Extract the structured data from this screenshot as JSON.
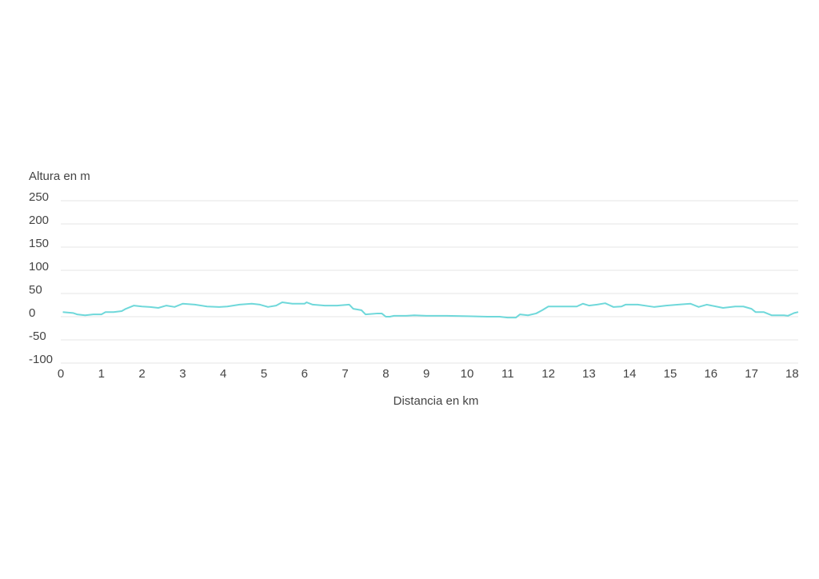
{
  "chart_data": {
    "type": "line",
    "y_axis_label": "Altura en m",
    "x_axis_label": "Distancia en km",
    "x": [
      0.05,
      0.3,
      0.4,
      0.6,
      0.8,
      1.0,
      1.1,
      1.3,
      1.5,
      1.6,
      1.8,
      2.0,
      2.2,
      2.4,
      2.6,
      2.8,
      3.0,
      3.3,
      3.6,
      3.9,
      4.1,
      4.4,
      4.7,
      4.9,
      5.1,
      5.3,
      5.45,
      5.7,
      6.0,
      6.05,
      6.2,
      6.5,
      6.8,
      7.1,
      7.2,
      7.4,
      7.5,
      7.8,
      7.9,
      8.0,
      8.1,
      8.2,
      8.5,
      8.7,
      9.0,
      9.5,
      10.0,
      10.5,
      10.8,
      11.0,
      11.2,
      11.3,
      11.5,
      11.7,
      11.85,
      12.0,
      12.3,
      12.7,
      12.85,
      13.0,
      13.2,
      13.4,
      13.6,
      13.8,
      13.9,
      14.2,
      14.6,
      14.9,
      15.2,
      15.5,
      15.7,
      15.9,
      16.3,
      16.6,
      16.8,
      17.0,
      17.1,
      17.3,
      17.5,
      17.8,
      17.9,
      18.05,
      18.15
    ],
    "series": [
      {
        "name": "Altura",
        "color": "#6fd8da",
        "values": [
          10,
          8,
          5,
          3,
          5,
          5,
          10,
          10,
          12,
          17,
          24,
          22,
          21,
          19,
          24,
          21,
          28,
          26,
          22,
          21,
          22,
          26,
          28,
          26,
          21,
          24,
          31,
          28,
          28,
          31,
          26,
          24,
          24,
          26,
          17,
          14,
          5,
          7,
          7,
          0,
          0,
          2,
          2,
          3,
          2,
          2,
          1,
          0,
          0,
          -2,
          -2,
          5,
          3,
          7,
          14,
          22,
          22,
          22,
          28,
          24,
          26,
          29,
          21,
          22,
          26,
          26,
          21,
          24,
          26,
          28,
          21,
          26,
          19,
          22,
          22,
          17,
          10,
          10,
          3,
          3,
          2,
          8,
          10
        ]
      }
    ],
    "xlim": [
      0,
      18.15
    ],
    "ylim": [
      -100,
      250
    ],
    "xticks": [
      0,
      1,
      2,
      3,
      4,
      5,
      6,
      7,
      8,
      9,
      10,
      11,
      12,
      13,
      14,
      15,
      16,
      17,
      18
    ],
    "yticks": [
      -100,
      -50,
      0,
      50,
      100,
      150,
      200,
      250
    ],
    "grid": true
  }
}
